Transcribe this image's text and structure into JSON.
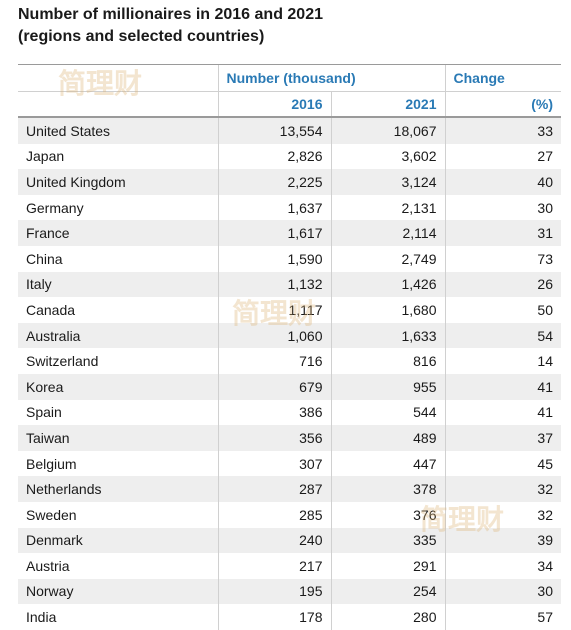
{
  "chart_data": {
    "type": "table",
    "title_line1": "Number of millionaires in 2016 and 2021",
    "title_line2": "(regions and selected countries)",
    "header": {
      "group1": "Number (thousand)",
      "group2": "Change",
      "col_2016": "2016",
      "col_2021": "2021",
      "col_change": "(%)"
    },
    "rows": [
      {
        "country": "United States",
        "y2016": "13,554",
        "y2021": "18,067",
        "change": "33"
      },
      {
        "country": "Japan",
        "y2016": "2,826",
        "y2021": "3,602",
        "change": "27"
      },
      {
        "country": "United Kingdom",
        "y2016": "2,225",
        "y2021": "3,124",
        "change": "40"
      },
      {
        "country": "Germany",
        "y2016": "1,637",
        "y2021": "2,131",
        "change": "30"
      },
      {
        "country": "France",
        "y2016": "1,617",
        "y2021": "2,114",
        "change": "31"
      },
      {
        "country": "China",
        "y2016": "1,590",
        "y2021": "2,749",
        "change": "73"
      },
      {
        "country": "Italy",
        "y2016": "1,132",
        "y2021": "1,426",
        "change": "26"
      },
      {
        "country": "Canada",
        "y2016": "1,117",
        "y2021": "1,680",
        "change": "50"
      },
      {
        "country": "Australia",
        "y2016": "1,060",
        "y2021": "1,633",
        "change": "54"
      },
      {
        "country": "Switzerland",
        "y2016": "716",
        "y2021": "816",
        "change": "14"
      },
      {
        "country": "Korea",
        "y2016": "679",
        "y2021": "955",
        "change": "41"
      },
      {
        "country": "Spain",
        "y2016": "386",
        "y2021": "544",
        "change": "41"
      },
      {
        "country": "Taiwan",
        "y2016": "356",
        "y2021": "489",
        "change": "37"
      },
      {
        "country": "Belgium",
        "y2016": "307",
        "y2021": "447",
        "change": "45"
      },
      {
        "country": "Netherlands",
        "y2016": "287",
        "y2021": "378",
        "change": "32"
      },
      {
        "country": "Sweden",
        "y2016": "285",
        "y2021": "376",
        "change": "32"
      },
      {
        "country": "Denmark",
        "y2016": "240",
        "y2021": "335",
        "change": "39"
      },
      {
        "country": "Austria",
        "y2016": "217",
        "y2021": "291",
        "change": "34"
      },
      {
        "country": "Norway",
        "y2016": "195",
        "y2021": "254",
        "change": "30"
      },
      {
        "country": "India",
        "y2016": "178",
        "y2021": "280",
        "change": "57"
      }
    ],
    "watermark": "简理财"
  }
}
